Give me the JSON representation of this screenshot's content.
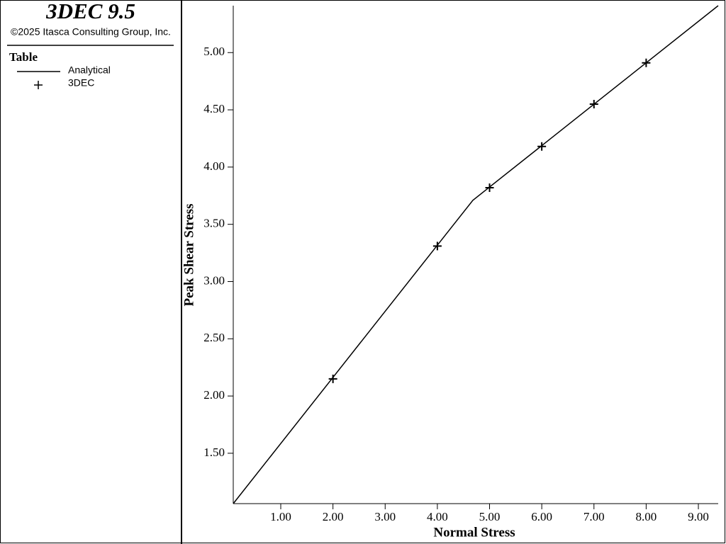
{
  "chart_data": {
    "type": "line",
    "title": "3DEC 9.5",
    "subtitle": "©2025 Itasca Consulting Group, Inc.",
    "legend_title": "Table",
    "xlabel": "Normal Stress",
    "ylabel": "Peak Shear Stress",
    "xlim": [
      0.09,
      9.38
    ],
    "ylim": [
      1.06,
      5.41
    ],
    "xticks": [
      {
        "value": 1,
        "label": "1.00"
      },
      {
        "value": 2,
        "label": "2.00"
      },
      {
        "value": 3,
        "label": "3.00"
      },
      {
        "value": 4,
        "label": "4.00"
      },
      {
        "value": 5,
        "label": "5.00"
      },
      {
        "value": 6,
        "label": "6.00"
      },
      {
        "value": 7,
        "label": "7.00"
      },
      {
        "value": 8,
        "label": "8.00"
      },
      {
        "value": 9,
        "label": "9.00"
      }
    ],
    "yticks": [
      {
        "value": 1.5,
        "label": "1.50"
      },
      {
        "value": 2,
        "label": "2.00"
      },
      {
        "value": 2.5,
        "label": "2.50"
      },
      {
        "value": 3,
        "label": "3.00"
      },
      {
        "value": 3.5,
        "label": "3.50"
      },
      {
        "value": 4,
        "label": "4.00"
      },
      {
        "value": 4.5,
        "label": "4.50"
      },
      {
        "value": 5,
        "label": "5.00"
      }
    ],
    "series": [
      {
        "name": "Analytical",
        "color": "#000000",
        "style": "line",
        "x": [
          0.09,
          4.68,
          9.38
        ],
        "values": [
          1.06,
          3.71,
          5.41
        ]
      },
      {
        "name": "3DEC",
        "color": "#000000",
        "style": "plus",
        "x": [
          2,
          4,
          5,
          6,
          7,
          8
        ],
        "values": [
          2.15,
          3.31,
          3.82,
          4.18,
          4.55,
          4.91
        ]
      }
    ]
  }
}
